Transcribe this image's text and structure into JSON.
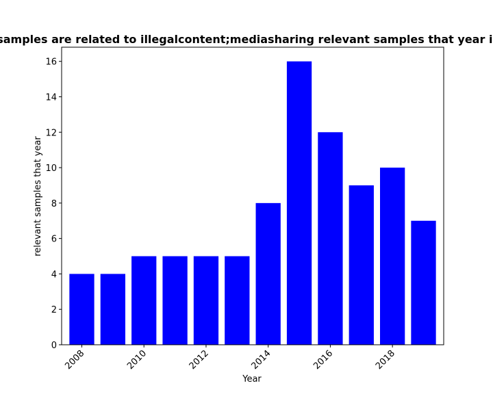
{
  "chart_data": {
    "type": "bar",
    "title": "Year where all samples are related to illegalcontent;mediasharing relevant samples that year in privacy policies",
    "xlabel": "Year",
    "ylabel": "relevant samples that year",
    "x": [
      2008,
      2009,
      2010,
      2011,
      2012,
      2013,
      2014,
      2015,
      2016,
      2017,
      2018,
      2019
    ],
    "values": [
      4,
      4,
      5,
      5,
      5,
      5,
      8,
      16,
      12,
      9,
      10,
      7
    ],
    "xticks": [
      "2008",
      "2010",
      "2012",
      "2014",
      "2016",
      "2018"
    ],
    "yticks": [
      "0",
      "2",
      "4",
      "6",
      "8",
      "10",
      "12",
      "14",
      "16"
    ],
    "xlim": [
      2007.35,
      2019.65
    ],
    "ylim": [
      0,
      16.8
    ],
    "bar_color": "#0000ff",
    "grid": false
  }
}
